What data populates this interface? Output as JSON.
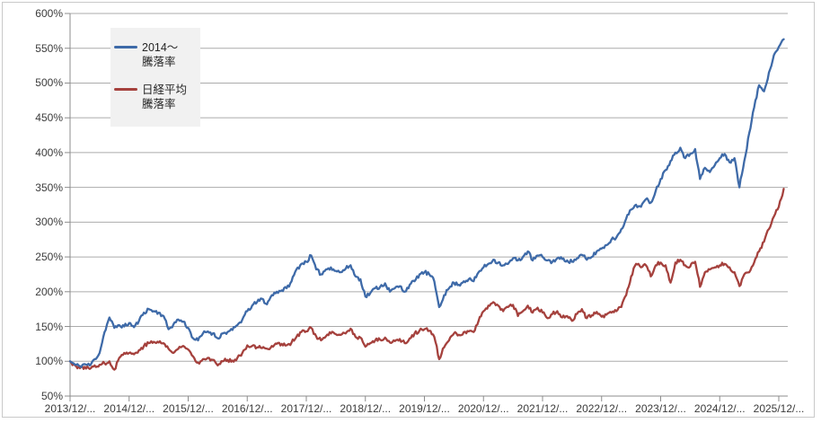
{
  "chart": {
    "legend": {
      "background": "#F1F1F1",
      "entries": [
        {
          "label_line1": "2014〜",
          "label_line2": "騰落率",
          "color": "#3E6AA8"
        },
        {
          "label_line1": "日経平均",
          "label_line2": "騰落率",
          "color": "#A5413D"
        }
      ]
    },
    "colors": {
      "series1": "#3E6AA8",
      "series2": "#A5413D",
      "gridline": "#ABABAB",
      "axis": "#8C8C8C",
      "text": "#3B3B3B",
      "border": "#C9C9C9",
      "background": "#FFFFFF"
    }
  },
  "chart_data": {
    "type": "line",
    "title": "",
    "x_start": "2013/12",
    "x_interval": "monthly",
    "x_tick_labels": [
      "2013/12/...",
      "2014/12/...",
      "2015/12/...",
      "2016/12/...",
      "2017/12/...",
      "2018/12/...",
      "2019/12/...",
      "2020/12/...",
      "2021/12/...",
      "2022/12/...",
      "2023/12/...",
      "2024/12/...",
      "2025/12/..."
    ],
    "y_tick_labels": [
      "600%",
      "550%",
      "500%",
      "450%",
      "400%",
      "350%",
      "300%",
      "250%",
      "200%",
      "150%",
      "100%",
      "50%"
    ],
    "ylim": [
      50,
      600
    ],
    "y_step": 50,
    "grid": "horizontal",
    "legend_position": "top-left-inside",
    "series": [
      {
        "name": "2014〜騰落率",
        "color": "#3E6AA8",
        "values": [
          100,
          95,
          93,
          96,
          94,
          103,
          112,
          142,
          163,
          148,
          152,
          150,
          155,
          149,
          158,
          170,
          175,
          172,
          170,
          165,
          146,
          153,
          160,
          157,
          148,
          133,
          130,
          140,
          143,
          140,
          133,
          140,
          142,
          145,
          152,
          160,
          172,
          180,
          185,
          190,
          182,
          195,
          200,
          202,
          205,
          215,
          232,
          240,
          243,
          252,
          232,
          225,
          232,
          235,
          230,
          228,
          233,
          238,
          222,
          218,
          193,
          198,
          205,
          207,
          212,
          200,
          205,
          208,
          200,
          210,
          215,
          225,
          228,
          225,
          215,
          178,
          195,
          205,
          213,
          210,
          215,
          218,
          215,
          228,
          235,
          240,
          246,
          242,
          238,
          240,
          248,
          245,
          250,
          258,
          245,
          252,
          250,
          245,
          243,
          248,
          247,
          245,
          243,
          248,
          253,
          246,
          250,
          258,
          262,
          267,
          275,
          278,
          290,
          305,
          318,
          325,
          322,
          333,
          328,
          345,
          362,
          375,
          388,
          400,
          407,
          392,
          398,
          405,
          362,
          378,
          372,
          382,
          392,
          398,
          386,
          392,
          350,
          388,
          428,
          465,
          497,
          488,
          515,
          540,
          552,
          563
        ]
      },
      {
        "name": "日経平均騰落率",
        "color": "#A5413D",
        "values": [
          100,
          94,
          90,
          92,
          89,
          94,
          95,
          97,
          100,
          88,
          105,
          112,
          112,
          110,
          116,
          122,
          126,
          128,
          127,
          126,
          118,
          112,
          118,
          122,
          117,
          107,
          98,
          103,
          105,
          102,
          94,
          100,
          102,
          101,
          105,
          112,
          123,
          122,
          120,
          119,
          118,
          122,
          125,
          125,
          123,
          127,
          135,
          142,
          143,
          148,
          136,
          130,
          136,
          140,
          139,
          138,
          140,
          147,
          135,
          134,
          121,
          126,
          130,
          131,
          134,
          127,
          129,
          132,
          126,
          133,
          140,
          144,
          146,
          144,
          135,
          103,
          120,
          130,
          140,
          138,
          142,
          143,
          142,
          158,
          172,
          180,
          185,
          180,
          172,
          178,
          181,
          165,
          172,
          180,
          170,
          177,
          170,
          162,
          168,
          172,
          163,
          165,
          158,
          168,
          175,
          162,
          166,
          171,
          164,
          167,
          170,
          172,
          178,
          195,
          222,
          240,
          235,
          238,
          222,
          238,
          242,
          238,
          213,
          242,
          246,
          238,
          236,
          243,
          207,
          228,
          232,
          235,
          238,
          240,
          235,
          228,
          208,
          225,
          228,
          242,
          258,
          272,
          290,
          308,
          322,
          348
        ]
      }
    ]
  }
}
